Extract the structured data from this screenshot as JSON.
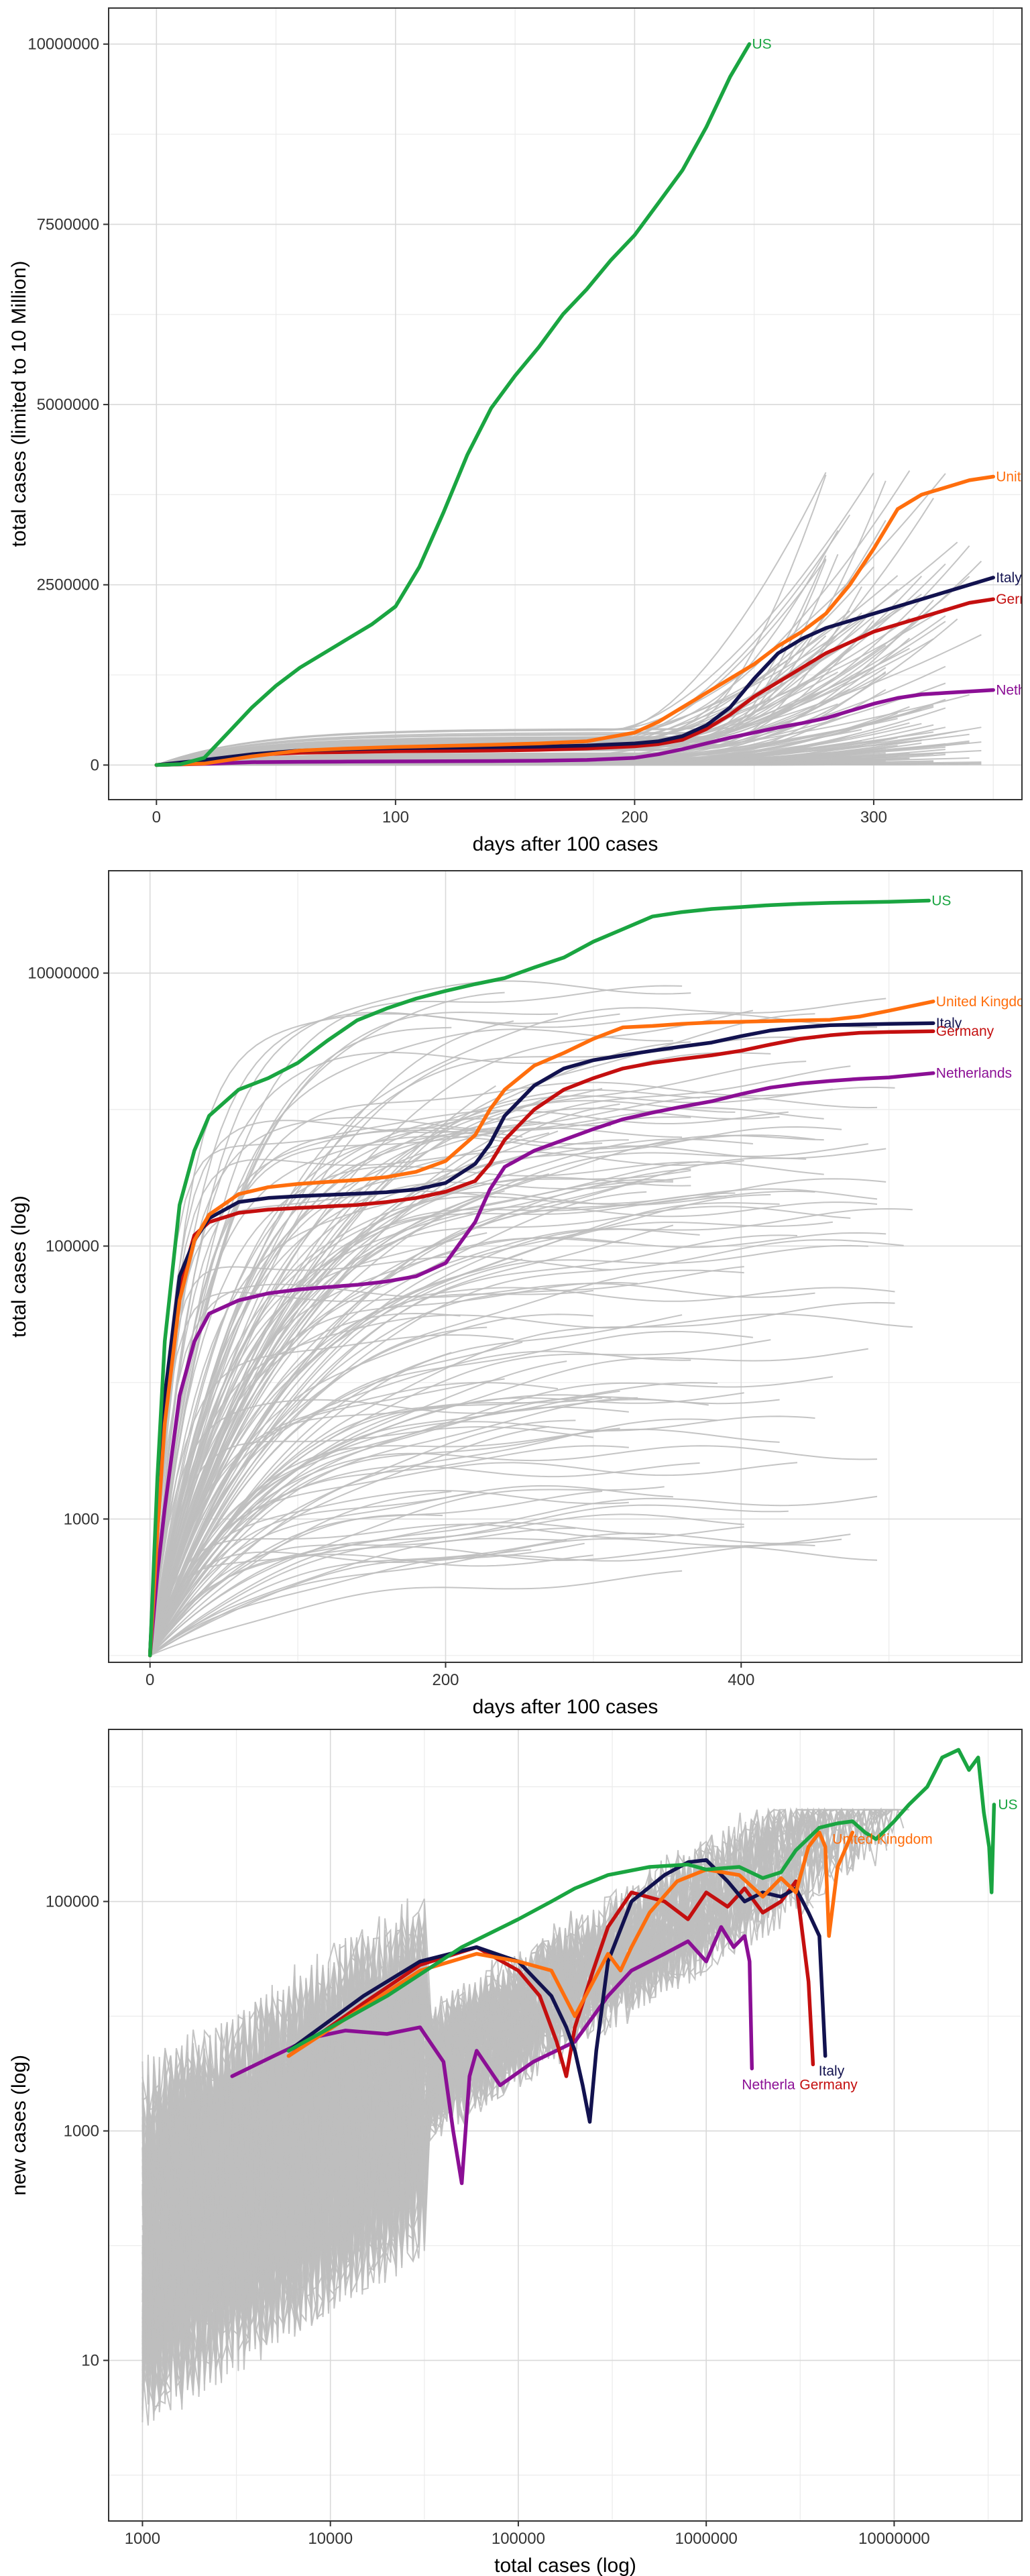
{
  "colors": {
    "background_lines": "#bebebe",
    "US": "#1aa541",
    "United Kingdom": "#ff6e0d",
    "Italy": "#12124f",
    "Germany": "#c40f0f",
    "Netherlands": "#8b0f95"
  },
  "chart_data": [
    {
      "type": "line",
      "title": "",
      "xlabel": "days after 100 cases",
      "ylabel": "total cases (limited to 10 Million)",
      "xlim": [
        -20,
        362
      ],
      "ylim": [
        -480000,
        10500000
      ],
      "x_ticks": [
        "0",
        "100",
        "200",
        "300"
      ],
      "x_tick_values": [
        0,
        100,
        200,
        300
      ],
      "y_ticks": [
        "0",
        "2500000",
        "5000000",
        "7500000",
        "10000000"
      ],
      "y_tick_values": [
        0,
        2500000,
        5000000,
        7500000,
        10000000
      ],
      "grid": true,
      "labels": [
        "US",
        "United",
        "Italy",
        "Germa",
        "Nether"
      ],
      "series": [
        {
          "name": "US",
          "x": [
            0,
            10,
            20,
            30,
            40,
            50,
            60,
            70,
            80,
            90,
            100,
            110,
            120,
            130,
            140,
            150,
            160,
            170,
            180,
            190,
            200,
            210,
            220,
            230,
            240,
            248
          ],
          "y": [
            100,
            10000,
            100000,
            450000,
            800000,
            1100000,
            1350000,
            1550000,
            1750000,
            1950000,
            2200000,
            2750000,
            3500000,
            4300000,
            4950000,
            5400000,
            5800000,
            6250000,
            6600000,
            7000000,
            7350000,
            7800000,
            8250000,
            8850000,
            9550000,
            10000000
          ]
        },
        {
          "name": "United Kingdom",
          "x": [
            0,
            20,
            40,
            60,
            80,
            100,
            120,
            140,
            160,
            180,
            200,
            210,
            220,
            230,
            240,
            250,
            260,
            270,
            280,
            290,
            300,
            310,
            320,
            330,
            340,
            350
          ],
          "y": [
            100,
            20000,
            120000,
            200000,
            230000,
            250000,
            265000,
            280000,
            300000,
            330000,
            450000,
            600000,
            800000,
            1000000,
            1200000,
            1400000,
            1650000,
            1850000,
            2100000,
            2500000,
            3000000,
            3550000,
            3750000,
            3850000,
            3950000,
            4000000
          ]
        },
        {
          "name": "Italy",
          "x": [
            0,
            20,
            40,
            60,
            80,
            100,
            120,
            140,
            160,
            180,
            200,
            210,
            220,
            230,
            240,
            250,
            260,
            270,
            280,
            290,
            300,
            310,
            320,
            330,
            340,
            350
          ],
          "y": [
            100,
            70000,
            150000,
            200000,
            220000,
            235000,
            240000,
            248000,
            255000,
            270000,
            300000,
            330000,
            400000,
            550000,
            800000,
            1200000,
            1550000,
            1750000,
            1900000,
            2000000,
            2100000,
            2200000,
            2300000,
            2400000,
            2500000,
            2600000
          ]
        },
        {
          "name": "Germany",
          "x": [
            0,
            20,
            40,
            60,
            80,
            100,
            120,
            140,
            160,
            180,
            200,
            210,
            220,
            230,
            240,
            250,
            260,
            270,
            280,
            290,
            300,
            310,
            320,
            330,
            340,
            350
          ],
          "y": [
            100,
            60000,
            140000,
            170000,
            180000,
            190000,
            195000,
            200000,
            210000,
            230000,
            260000,
            290000,
            350000,
            500000,
            700000,
            950000,
            1150000,
            1350000,
            1550000,
            1700000,
            1850000,
            1950000,
            2050000,
            2150000,
            2250000,
            2300000
          ]
        },
        {
          "name": "Netherlands",
          "x": [
            0,
            20,
            40,
            60,
            80,
            100,
            120,
            140,
            160,
            180,
            200,
            210,
            220,
            230,
            240,
            250,
            260,
            270,
            280,
            290,
            300,
            310,
            320,
            330,
            340,
            350
          ],
          "y": [
            100,
            15000,
            40000,
            45000,
            48000,
            50000,
            52000,
            55000,
            60000,
            70000,
            100000,
            150000,
            220000,
            300000,
            380000,
            450000,
            520000,
            580000,
            650000,
            750000,
            850000,
            930000,
            980000,
            1000000,
            1020000,
            1040000
          ]
        }
      ]
    },
    {
      "type": "line",
      "title": "",
      "xlabel": "days after 100 cases",
      "ylabel": "total cases (log)",
      "xlim": [
        -28,
        590
      ],
      "ylim_log10": [
        1.95,
        7.75
      ],
      "x_ticks": [
        "0",
        "200",
        "400"
      ],
      "x_tick_values": [
        0,
        200,
        400
      ],
      "y_ticks": [
        "1000",
        "100000",
        "10000000"
      ],
      "y_tick_values": [
        1000,
        100000,
        10000000
      ],
      "grid": true,
      "labels": [
        "US",
        "United Kingdom",
        "Italy",
        "Germany",
        "Netherlands"
      ],
      "series": [
        {
          "name": "US",
          "x": [
            0,
            5,
            10,
            20,
            30,
            40,
            60,
            80,
            100,
            120,
            140,
            160,
            180,
            200,
            220,
            240,
            260,
            280,
            300,
            320,
            340,
            360,
            380,
            400,
            420,
            440,
            460,
            480,
            500,
            527
          ],
          "y": [
            100,
            2000,
            20000,
            200000,
            500000,
            900000,
            1400000,
            1700000,
            2200000,
            3200000,
            4500000,
            5500000,
            6500000,
            7400000,
            8300000,
            9200000,
            11000000,
            13000000,
            17000000,
            21000000,
            26000000,
            28000000,
            29500000,
            30500000,
            31500000,
            32200000,
            32700000,
            33000000,
            33300000,
            34000000
          ]
        },
        {
          "name": "United Kingdom",
          "x": [
            0,
            5,
            10,
            20,
            30,
            40,
            60,
            80,
            100,
            120,
            140,
            160,
            180,
            200,
            220,
            230,
            240,
            260,
            280,
            300,
            320,
            340,
            360,
            380,
            400,
            420,
            440,
            460,
            480,
            500,
            530
          ],
          "y": [
            100,
            800,
            5000,
            40000,
            110000,
            170000,
            240000,
            270000,
            285000,
            295000,
            305000,
            320000,
            350000,
            420000,
            650000,
            1000000,
            1400000,
            2100000,
            2600000,
            3300000,
            4000000,
            4100000,
            4250000,
            4350000,
            4400000,
            4450000,
            4500000,
            4550000,
            4800000,
            5300000,
            6200000
          ]
        },
        {
          "name": "Italy",
          "x": [
            0,
            5,
            10,
            20,
            30,
            40,
            60,
            80,
            100,
            120,
            140,
            160,
            180,
            200,
            220,
            230,
            240,
            260,
            280,
            300,
            320,
            340,
            360,
            380,
            400,
            420,
            440,
            460,
            480,
            500,
            530
          ],
          "y": [
            100,
            1500,
            8000,
            60000,
            110000,
            160000,
            210000,
            225000,
            232000,
            237000,
            242000,
            248000,
            260000,
            290000,
            400000,
            560000,
            900000,
            1500000,
            2000000,
            2300000,
            2500000,
            2700000,
            2900000,
            3100000,
            3450000,
            3800000,
            4000000,
            4150000,
            4200000,
            4250000,
            4300000
          ]
        },
        {
          "name": "Germany",
          "x": [
            0,
            5,
            10,
            20,
            30,
            40,
            60,
            80,
            100,
            120,
            140,
            160,
            180,
            200,
            220,
            230,
            240,
            260,
            280,
            300,
            320,
            340,
            360,
            380,
            400,
            420,
            440,
            460,
            480,
            500,
            530
          ],
          "y": [
            100,
            1200,
            6000,
            50000,
            120000,
            150000,
            175000,
            185000,
            190000,
            195000,
            200000,
            210000,
            225000,
            250000,
            300000,
            400000,
            600000,
            1000000,
            1400000,
            1700000,
            2000000,
            2200000,
            2350000,
            2500000,
            2700000,
            3000000,
            3300000,
            3500000,
            3650000,
            3700000,
            3750000
          ]
        },
        {
          "name": "Netherlands",
          "x": [
            0,
            5,
            10,
            20,
            30,
            40,
            60,
            80,
            100,
            120,
            140,
            160,
            180,
            200,
            220,
            230,
            240,
            260,
            280,
            300,
            320,
            340,
            360,
            380,
            400,
            420,
            440,
            460,
            480,
            500,
            530
          ],
          "y": [
            100,
            400,
            1200,
            8000,
            20000,
            32000,
            40000,
            45000,
            48000,
            50000,
            52000,
            55000,
            60000,
            75000,
            150000,
            260000,
            380000,
            500000,
            600000,
            720000,
            850000,
            950000,
            1050000,
            1150000,
            1300000,
            1450000,
            1550000,
            1620000,
            1680000,
            1720000,
            1850000
          ]
        }
      ]
    },
    {
      "type": "line",
      "title": "",
      "xlabel": "total cases (log)",
      "ylabel": "new cases (log)",
      "xlim_log10": [
        2.82,
        7.68
      ],
      "ylim_log10": [
        -0.4,
        6.5
      ],
      "x_ticks": [
        "1000",
        "10000",
        "100000",
        "1000000",
        "10000000"
      ],
      "x_tick_values": [
        1000,
        10000,
        100000,
        1000000,
        10000000
      ],
      "y_ticks": [
        "10",
        "1000",
        "100000"
      ],
      "y_tick_values": [
        10,
        1000,
        100000
      ],
      "grid": true,
      "labels": [
        "US",
        "United Kingdom",
        "Italy",
        "Netherla",
        "Germany"
      ],
      "series": [
        {
          "name": "US",
          "x": [
            6000,
            20000,
            50000,
            100000,
            150000,
            200000,
            300000,
            500000,
            800000,
            1000000,
            1500000,
            2000000,
            2500000,
            3000000,
            4000000,
            5000000,
            6000000,
            7000000,
            8000000,
            9000000,
            10000000,
            12000000,
            15000000,
            18000000,
            22000000,
            25000000,
            28000000,
            30000000,
            32000000,
            33000000,
            34000000
          ],
          "y": [
            5000,
            15000,
            40000,
            70000,
            100000,
            130000,
            170000,
            200000,
            210000,
            190000,
            200000,
            160000,
            180000,
            280000,
            440000,
            480000,
            500000,
            400000,
            350000,
            420000,
            500000,
            700000,
            1000000,
            1800000,
            2100000,
            1400000,
            1800000,
            600000,
            300000,
            120000,
            700000
          ]
        },
        {
          "name": "United Kingdom",
          "x": [
            6000,
            15000,
            30000,
            60000,
            100000,
            150000,
            200000,
            250000,
            300000,
            350000,
            400000,
            500000,
            700000,
            1000000,
            1500000,
            2000000,
            2500000,
            3000000,
            3500000,
            4000000,
            4300000,
            4500000,
            5000000,
            6000000
          ],
          "y": [
            4500,
            12000,
            25000,
            35000,
            30000,
            25000,
            10000,
            20000,
            35000,
            25000,
            40000,
            80000,
            150000,
            190000,
            170000,
            110000,
            160000,
            120000,
            300000,
            400000,
            300000,
            50000,
            200000,
            400000
          ]
        },
        {
          "name": "Italy",
          "x": [
            6000,
            15000,
            30000,
            60000,
            100000,
            150000,
            180000,
            200000,
            220000,
            240000,
            260000,
            300000,
            400000,
            600000,
            800000,
            1000000,
            1300000,
            1600000,
            2000000,
            2500000,
            3000000,
            3500000,
            4000000,
            4300000
          ],
          "y": [
            5000,
            15000,
            30000,
            40000,
            30000,
            15000,
            8000,
            5000,
            2500,
            1200,
            5000,
            30000,
            100000,
            170000,
            220000,
            230000,
            150000,
            100000,
            120000,
            110000,
            130000,
            80000,
            50000,
            4500
          ]
        },
        {
          "name": "Germany",
          "x": [
            6000,
            15000,
            30000,
            60000,
            100000,
            130000,
            160000,
            180000,
            200000,
            250000,
            300000,
            400000,
            600000,
            800000,
            1000000,
            1300000,
            1600000,
            2000000,
            2500000,
            3000000,
            3500000,
            3700000
          ],
          "y": [
            4500,
            13000,
            28000,
            40000,
            25000,
            15000,
            6000,
            3000,
            8000,
            25000,
            60000,
            120000,
            100000,
            70000,
            120000,
            90000,
            130000,
            80000,
            100000,
            150000,
            20000,
            3800
          ]
        },
        {
          "name": "Netherlands",
          "x": [
            3000,
            5000,
            8000,
            12000,
            20000,
            30000,
            40000,
            45000,
            50000,
            55000,
            60000,
            80000,
            120000,
            200000,
            300000,
            400000,
            600000,
            800000,
            1000000,
            1200000,
            1400000,
            1600000,
            1700000,
            1750000
          ],
          "y": [
            3000,
            4500,
            6500,
            7500,
            7000,
            8000,
            4000,
            1000,
            350,
            3000,
            5000,
            2500,
            4000,
            6000,
            15000,
            25000,
            35000,
            45000,
            30000,
            60000,
            40000,
            50000,
            30000,
            3500
          ]
        }
      ]
    }
  ]
}
